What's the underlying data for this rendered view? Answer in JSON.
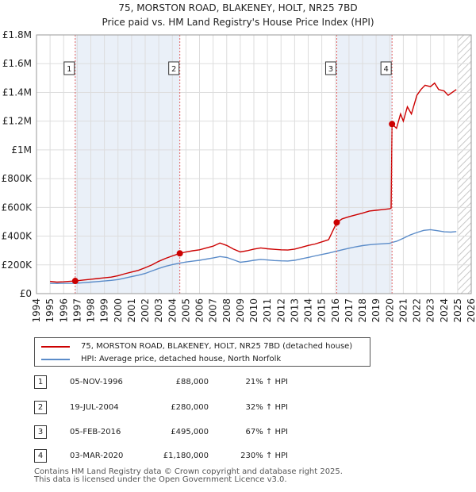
{
  "chart_data": {
    "type": "line",
    "title": "75, MORSTON ROAD, BLAKENEY, HOLT, NR25 7BD",
    "subtitle": "Price paid vs. HM Land Registry's House Price Index (HPI)",
    "xlim": [
      1994,
      2026
    ],
    "ylim": [
      0,
      1800000
    ],
    "x_ticks": [
      "1994",
      "1995",
      "1996",
      "1997",
      "1998",
      "1999",
      "2000",
      "2001",
      "2002",
      "2003",
      "2004",
      "2005",
      "2006",
      "2007",
      "2008",
      "2009",
      "2010",
      "2011",
      "2012",
      "2013",
      "2014",
      "2015",
      "2016",
      "2017",
      "2018",
      "2019",
      "2020",
      "2021",
      "2022",
      "2023",
      "2024",
      "2025",
      "2026"
    ],
    "y_ticks": [
      {
        "value": 0,
        "label": "£0"
      },
      {
        "value": 200000,
        "label": "£200K"
      },
      {
        "value": 400000,
        "label": "£400K"
      },
      {
        "value": 600000,
        "label": "£600K"
      },
      {
        "value": 800000,
        "label": "£800K"
      },
      {
        "value": 1000000,
        "label": "£1M"
      },
      {
        "value": 1200000,
        "label": "£1.2M"
      },
      {
        "value": 1400000,
        "label": "£1.4M"
      },
      {
        "value": 1600000,
        "label": "£1.6M"
      },
      {
        "value": 1800000,
        "label": "£1.8M"
      }
    ],
    "highlight_ranges": [
      [
        1996.85,
        2004.55
      ],
      [
        2016.1,
        2020.17
      ]
    ],
    "data_end": 2025.0,
    "series": [
      {
        "name": "75, MORSTON ROAD, BLAKENEY, HOLT, NR25 7BD (detached house)",
        "color": "#cc0000",
        "points": [
          [
            1995.0,
            85000
          ],
          [
            1995.5,
            80000
          ],
          [
            1996.0,
            82000
          ],
          [
            1996.85,
            88000
          ],
          [
            1997.5,
            95000
          ],
          [
            1998.0,
            100000
          ],
          [
            1998.5,
            105000
          ],
          [
            1999.0,
            110000
          ],
          [
            1999.5,
            115000
          ],
          [
            2000.0,
            125000
          ],
          [
            2000.5,
            138000
          ],
          [
            2001.0,
            150000
          ],
          [
            2001.5,
            162000
          ],
          [
            2002.0,
            180000
          ],
          [
            2002.5,
            200000
          ],
          [
            2003.0,
            225000
          ],
          [
            2003.5,
            245000
          ],
          [
            2004.0,
            262000
          ],
          [
            2004.55,
            280000
          ],
          [
            2005.0,
            290000
          ],
          [
            2005.5,
            298000
          ],
          [
            2006.0,
            305000
          ],
          [
            2006.5,
            318000
          ],
          [
            2007.0,
            330000
          ],
          [
            2007.5,
            352000
          ],
          [
            2008.0,
            335000
          ],
          [
            2008.5,
            310000
          ],
          [
            2009.0,
            290000
          ],
          [
            2009.5,
            298000
          ],
          [
            2010.0,
            310000
          ],
          [
            2010.5,
            318000
          ],
          [
            2011.0,
            312000
          ],
          [
            2011.5,
            308000
          ],
          [
            2012.0,
            305000
          ],
          [
            2012.5,
            303000
          ],
          [
            2013.0,
            310000
          ],
          [
            2013.5,
            322000
          ],
          [
            2014.0,
            335000
          ],
          [
            2014.5,
            345000
          ],
          [
            2015.0,
            360000
          ],
          [
            2015.5,
            375000
          ],
          [
            2016.1,
            495000
          ],
          [
            2016.5,
            520000
          ],
          [
            2017.0,
            535000
          ],
          [
            2017.5,
            548000
          ],
          [
            2018.0,
            560000
          ],
          [
            2018.5,
            575000
          ],
          [
            2019.0,
            580000
          ],
          [
            2019.5,
            585000
          ],
          [
            2020.0,
            590000
          ],
          [
            2020.1,
            595000
          ],
          [
            2020.17,
            1180000
          ],
          [
            2020.5,
            1150000
          ],
          [
            2020.8,
            1250000
          ],
          [
            2021.0,
            1200000
          ],
          [
            2021.3,
            1300000
          ],
          [
            2021.6,
            1250000
          ],
          [
            2022.0,
            1380000
          ],
          [
            2022.3,
            1420000
          ],
          [
            2022.6,
            1450000
          ],
          [
            2023.0,
            1440000
          ],
          [
            2023.3,
            1465000
          ],
          [
            2023.6,
            1420000
          ],
          [
            2024.0,
            1410000
          ],
          [
            2024.3,
            1380000
          ],
          [
            2024.6,
            1400000
          ],
          [
            2024.9,
            1420000
          ]
        ]
      },
      {
        "name": "HPI: Average price, detached house, North Norfolk",
        "color": "#5b8cc9",
        "points": [
          [
            1995.0,
            72000
          ],
          [
            1995.5,
            70000
          ],
          [
            1996.0,
            71000
          ],
          [
            1996.85,
            72000
          ],
          [
            1997.5,
            76000
          ],
          [
            1998.0,
            80000
          ],
          [
            1998.5,
            84000
          ],
          [
            1999.0,
            88000
          ],
          [
            1999.5,
            92000
          ],
          [
            2000.0,
            98000
          ],
          [
            2000.5,
            108000
          ],
          [
            2001.0,
            118000
          ],
          [
            2001.5,
            128000
          ],
          [
            2002.0,
            140000
          ],
          [
            2002.5,
            158000
          ],
          [
            2003.0,
            175000
          ],
          [
            2003.5,
            190000
          ],
          [
            2004.0,
            202000
          ],
          [
            2004.55,
            212000
          ],
          [
            2005.0,
            220000
          ],
          [
            2005.5,
            226000
          ],
          [
            2006.0,
            232000
          ],
          [
            2006.5,
            240000
          ],
          [
            2007.0,
            248000
          ],
          [
            2007.5,
            258000
          ],
          [
            2008.0,
            252000
          ],
          [
            2008.5,
            235000
          ],
          [
            2009.0,
            218000
          ],
          [
            2009.5,
            224000
          ],
          [
            2010.0,
            232000
          ],
          [
            2010.5,
            238000
          ],
          [
            2011.0,
            234000
          ],
          [
            2011.5,
            230000
          ],
          [
            2012.0,
            228000
          ],
          [
            2012.5,
            227000
          ],
          [
            2013.0,
            232000
          ],
          [
            2013.5,
            242000
          ],
          [
            2014.0,
            252000
          ],
          [
            2014.5,
            262000
          ],
          [
            2015.0,
            272000
          ],
          [
            2015.5,
            282000
          ],
          [
            2016.1,
            296000
          ],
          [
            2016.5,
            305000
          ],
          [
            2017.0,
            316000
          ],
          [
            2017.5,
            326000
          ],
          [
            2018.0,
            334000
          ],
          [
            2018.5,
            340000
          ],
          [
            2019.0,
            344000
          ],
          [
            2019.5,
            347000
          ],
          [
            2020.0,
            350000
          ],
          [
            2020.17,
            356000
          ],
          [
            2020.5,
            364000
          ],
          [
            2021.0,
            385000
          ],
          [
            2021.5,
            408000
          ],
          [
            2022.0,
            425000
          ],
          [
            2022.5,
            440000
          ],
          [
            2023.0,
            445000
          ],
          [
            2023.5,
            438000
          ],
          [
            2024.0,
            430000
          ],
          [
            2024.5,
            428000
          ],
          [
            2024.9,
            432000
          ]
        ]
      }
    ],
    "markers": [
      {
        "label": "1",
        "x": 1996.85,
        "y": 88000
      },
      {
        "label": "2",
        "x": 2004.55,
        "y": 280000
      },
      {
        "label": "3",
        "x": 2016.1,
        "y": 495000
      },
      {
        "label": "4",
        "x": 2020.17,
        "y": 1180000
      }
    ]
  },
  "legend": {
    "property_label": "75, MORSTON ROAD, BLAKENEY, HOLT, NR25 7BD (detached house)",
    "hpi_label": "HPI: Average price, detached house, North Norfolk",
    "property_color": "#cc0000",
    "hpi_color": "#5b8cc9"
  },
  "sales": [
    {
      "num": "1",
      "date": "05-NOV-1996",
      "price": "£88,000",
      "hpi": "21% ↑ HPI"
    },
    {
      "num": "2",
      "date": "19-JUL-2004",
      "price": "£280,000",
      "hpi": "32% ↑ HPI"
    },
    {
      "num": "3",
      "date": "05-FEB-2016",
      "price": "£495,000",
      "hpi": "67% ↑ HPI"
    },
    {
      "num": "4",
      "date": "03-MAR-2020",
      "price": "£1,180,000",
      "hpi": "230% ↑ HPI"
    }
  ],
  "footer": {
    "line1": "Contains HM Land Registry data © Crown copyright and database right 2025.",
    "line2": "This data is licensed under the Open Government Licence v3.0."
  }
}
